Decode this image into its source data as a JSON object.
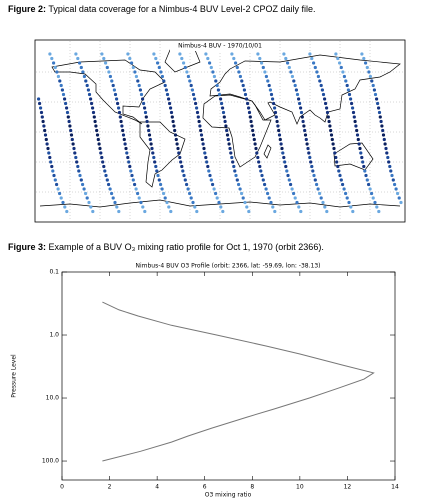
{
  "figure2": {
    "label": "Figure 2:",
    "caption": "Typical data coverage for a Nimbus-4 BUV Level-2 CPOZ daily file.",
    "map_title": "Nimbus-4 BUV - 1970/10/01"
  },
  "figure3": {
    "label": "Figure 3:",
    "caption": "Example of a BUV O₃ mixing ratio profile for Oct 1, 1970 (orbit 2366)."
  },
  "chart_data": {
    "type": "line",
    "title": "Nimbus-4 BUV O3 Profile (orbit: 2366, lat: -59.69, lon: -38.13)",
    "x_label": "O3 mixing ratio",
    "y_label": "Pressure Level",
    "x": [
      1.7,
      2.4,
      3.2,
      4.6,
      6.5,
      8.6,
      10.0,
      11.8,
      13.1,
      12.7,
      11.6,
      10.4,
      8.9,
      7.8,
      6.3,
      5.3,
      4.6,
      3.3,
      1.7
    ],
    "values": [
      0.3,
      0.4,
      0.5,
      0.7,
      1.0,
      1.5,
      2,
      3,
      4,
      5,
      7,
      10,
      15,
      20,
      30,
      40,
      50,
      70,
      100
    ],
    "color": "#777777",
    "xlim": [
      0,
      14
    ],
    "xticks": [
      0,
      2,
      4,
      6,
      8,
      10,
      12,
      14
    ],
    "ylim": [
      0.1,
      200
    ],
    "y_log": true,
    "y_inverted": true,
    "yticks": [
      0.1,
      {
        "value": 1,
        "label": "1.0"
      },
      {
        "value": 10,
        "label": "10.0"
      },
      {
        "value": 100,
        "label": "100.0"
      }
    ]
  }
}
